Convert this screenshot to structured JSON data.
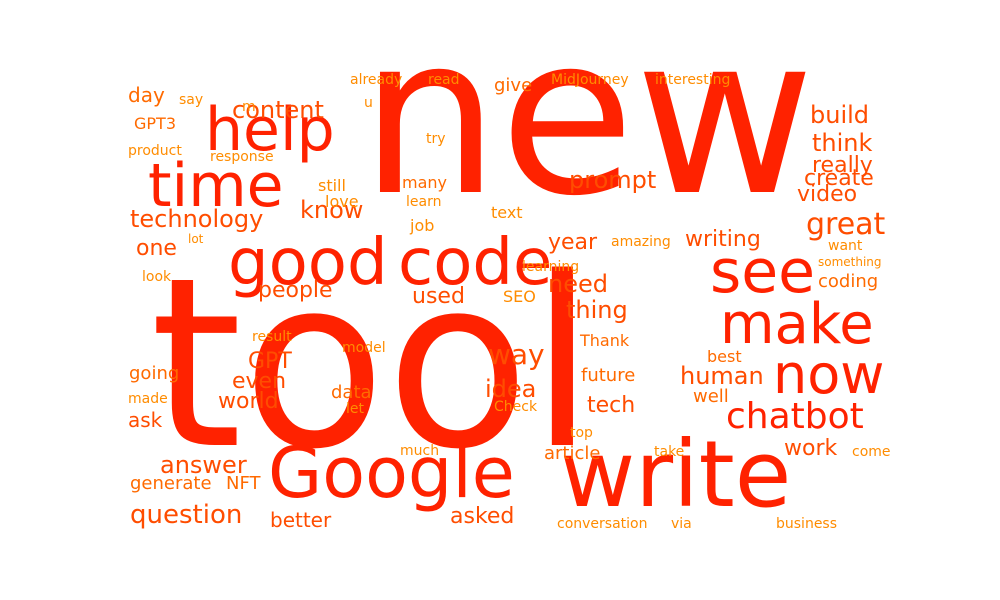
{
  "palette": {
    "red": "#ff2200",
    "orange_red": "#ff4d00",
    "orange": "#ff6a00",
    "light_orange": "#ff8c00"
  },
  "words": [
    {
      "text": "new",
      "tone": "red"
    },
    {
      "text": "tool",
      "tone": "red"
    },
    {
      "text": "write",
      "tone": "red"
    },
    {
      "text": "Google",
      "tone": "red"
    },
    {
      "text": "good",
      "tone": "red"
    },
    {
      "text": "code",
      "tone": "red"
    },
    {
      "text": "time",
      "tone": "red"
    },
    {
      "text": "help",
      "tone": "red"
    },
    {
      "text": "see",
      "tone": "red"
    },
    {
      "text": "make",
      "tone": "red"
    },
    {
      "text": "now",
      "tone": "red"
    },
    {
      "text": "chatbot",
      "tone": "red"
    },
    {
      "text": "content",
      "tone": "orange_red"
    },
    {
      "text": "technology",
      "tone": "orange_red"
    },
    {
      "text": "know",
      "tone": "orange_red"
    },
    {
      "text": "one",
      "tone": "orange_red"
    },
    {
      "text": "day",
      "tone": "orange"
    },
    {
      "text": "say",
      "tone": "light_orange"
    },
    {
      "text": "m",
      "tone": "light_orange"
    },
    {
      "text": "already",
      "tone": "light_orange"
    },
    {
      "text": "read",
      "tone": "light_orange"
    },
    {
      "text": "u",
      "tone": "light_orange"
    },
    {
      "text": "give",
      "tone": "orange"
    },
    {
      "text": "MidJourney",
      "tone": "light_orange"
    },
    {
      "text": "interesting",
      "tone": "light_orange"
    },
    {
      "text": "build",
      "tone": "orange_red"
    },
    {
      "text": "think",
      "tone": "orange_red"
    },
    {
      "text": "create",
      "tone": "orange_red"
    },
    {
      "text": "really",
      "tone": "orange_red"
    },
    {
      "text": "video",
      "tone": "orange_red"
    },
    {
      "text": "great",
      "tone": "orange_red"
    },
    {
      "text": "want",
      "tone": "light_orange"
    },
    {
      "text": "something",
      "tone": "light_orange"
    },
    {
      "text": "coding",
      "tone": "orange"
    },
    {
      "text": "GPT3",
      "tone": "orange"
    },
    {
      "text": "product",
      "tone": "light_orange"
    },
    {
      "text": "response",
      "tone": "light_orange"
    },
    {
      "text": "try",
      "tone": "light_orange"
    },
    {
      "text": "still",
      "tone": "light_orange"
    },
    {
      "text": "many",
      "tone": "orange"
    },
    {
      "text": "learn",
      "tone": "light_orange"
    },
    {
      "text": "love",
      "tone": "light_orange"
    },
    {
      "text": "job",
      "tone": "light_orange"
    },
    {
      "text": "text",
      "tone": "light_orange"
    },
    {
      "text": "prompt",
      "tone": "orange_red"
    },
    {
      "text": "year",
      "tone": "orange_red"
    },
    {
      "text": "amazing",
      "tone": "light_orange"
    },
    {
      "text": "writing",
      "tone": "orange_red"
    },
    {
      "text": "lot",
      "tone": "light_orange"
    },
    {
      "text": "look",
      "tone": "light_orange"
    },
    {
      "text": "people",
      "tone": "orange_red"
    },
    {
      "text": "used",
      "tone": "orange_red"
    },
    {
      "text": "learning",
      "tone": "light_orange"
    },
    {
      "text": "need",
      "tone": "orange_red"
    },
    {
      "text": "thing",
      "tone": "orange_red"
    },
    {
      "text": "SEO",
      "tone": "light_orange"
    },
    {
      "text": "result",
      "tone": "light_orange"
    },
    {
      "text": "model",
      "tone": "light_orange"
    },
    {
      "text": "way",
      "tone": "orange_red"
    },
    {
      "text": "Thank",
      "tone": "orange"
    },
    {
      "text": "best",
      "tone": "orange"
    },
    {
      "text": "GPT",
      "tone": "orange_red"
    },
    {
      "text": "even",
      "tone": "orange_red"
    },
    {
      "text": "going",
      "tone": "orange"
    },
    {
      "text": "world",
      "tone": "orange_red"
    },
    {
      "text": "made",
      "tone": "light_orange"
    },
    {
      "text": "data",
      "tone": "orange"
    },
    {
      "text": "let",
      "tone": "light_orange"
    },
    {
      "text": "idea",
      "tone": "orange_red"
    },
    {
      "text": "future",
      "tone": "orange"
    },
    {
      "text": "Check",
      "tone": "light_orange"
    },
    {
      "text": "human",
      "tone": "orange_red"
    },
    {
      "text": "well",
      "tone": "orange"
    },
    {
      "text": "tech",
      "tone": "orange_red"
    },
    {
      "text": "ask",
      "tone": "orange_red"
    },
    {
      "text": "work",
      "tone": "orange_red"
    },
    {
      "text": "come",
      "tone": "light_orange"
    },
    {
      "text": "take",
      "tone": "light_orange"
    },
    {
      "text": "top",
      "tone": "light_orange"
    },
    {
      "text": "answer",
      "tone": "orange_red"
    },
    {
      "text": "much",
      "tone": "light_orange"
    },
    {
      "text": "article",
      "tone": "orange"
    },
    {
      "text": "generate",
      "tone": "orange"
    },
    {
      "text": "NFT",
      "tone": "orange"
    },
    {
      "text": "question",
      "tone": "orange_red"
    },
    {
      "text": "better",
      "tone": "orange_red"
    },
    {
      "text": "asked",
      "tone": "orange_red"
    },
    {
      "text": "conversation",
      "tone": "light_orange"
    },
    {
      "text": "via",
      "tone": "light_orange"
    },
    {
      "text": "business",
      "tone": "light_orange"
    }
  ]
}
